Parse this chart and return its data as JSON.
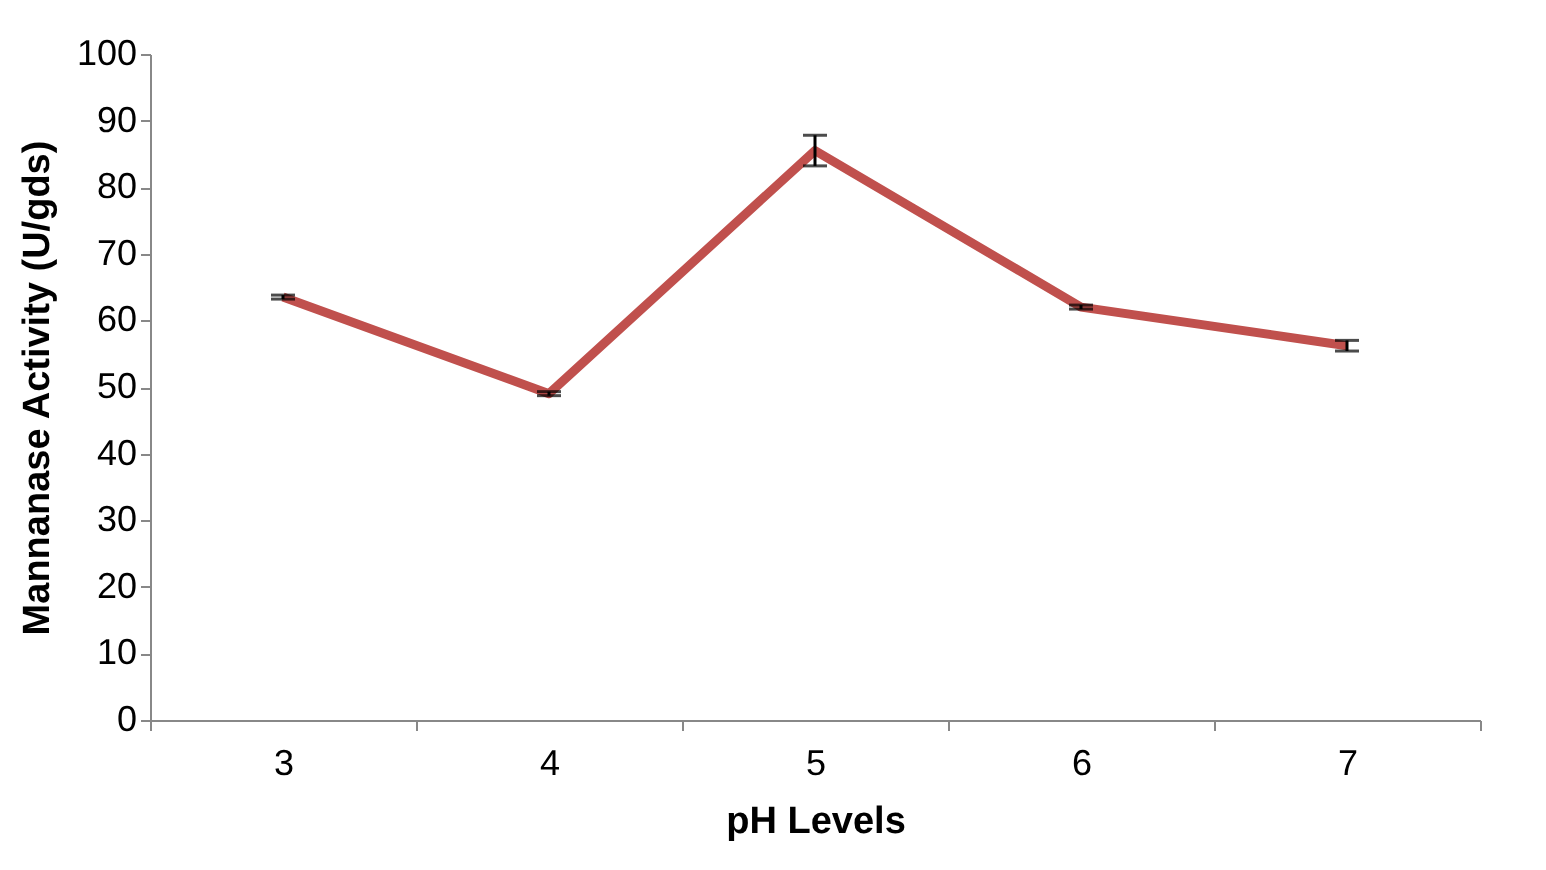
{
  "chart_data": {
    "type": "line",
    "xlabel": "pH Levels",
    "ylabel": "Mannanase Activity (U/gds)",
    "categories": [
      "3",
      "4",
      "5",
      "6",
      "7"
    ],
    "series": [
      {
        "color": "#c0504d",
        "values": [
          63.5,
          49,
          85.5,
          62,
          56.2
        ],
        "errors": [
          0.3,
          0.3,
          2.3,
          0.3,
          0.8
        ]
      }
    ],
    "ylim": [
      0,
      100
    ],
    "yticks": [
      0,
      10,
      20,
      30,
      40,
      50,
      60,
      70,
      80,
      90,
      100
    ],
    "grid": false,
    "legend": false,
    "marker": "none"
  }
}
